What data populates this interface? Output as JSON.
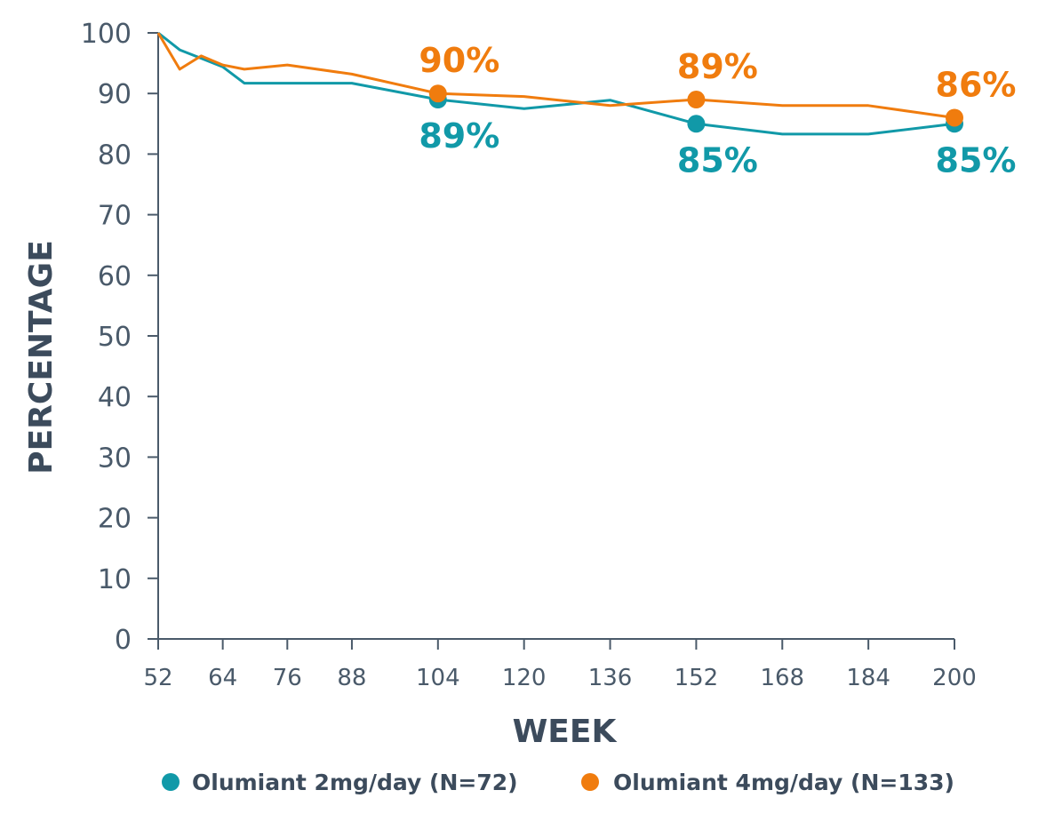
{
  "chart_data": {
    "type": "line",
    "title": "",
    "xlabel": "WEEK",
    "ylabel": "PERCENTAGE",
    "xlim": [
      52,
      200
    ],
    "ylim": [
      0,
      100
    ],
    "x_ticks": [
      52,
      64,
      76,
      88,
      104,
      120,
      136,
      152,
      168,
      184,
      200
    ],
    "y_ticks": [
      0,
      10,
      20,
      30,
      40,
      50,
      60,
      70,
      80,
      90,
      100
    ],
    "grid": false,
    "legend_position": "bottom",
    "series": [
      {
        "name": "Olumiant 2mg/day (N=72)",
        "color": "#1199a8",
        "x": [
          52,
          56,
          60,
          64,
          68,
          76,
          88,
          104,
          120,
          136,
          152,
          168,
          184,
          200
        ],
        "y": [
          100,
          97.2,
          95.8,
          94.4,
          91.7,
          91.7,
          91.7,
          89,
          87.5,
          88.9,
          85,
          83.3,
          83.3,
          85
        ],
        "markers": [
          {
            "x": 104,
            "y": 89,
            "label": "89%"
          },
          {
            "x": 152,
            "y": 85,
            "label": "85%"
          },
          {
            "x": 200,
            "y": 85,
            "label": "85%"
          }
        ]
      },
      {
        "name": "Olumiant 4mg/day (N=133)",
        "color": "#f07c0e",
        "x": [
          52,
          56,
          60,
          64,
          68,
          76,
          88,
          104,
          120,
          136,
          152,
          168,
          184,
          200
        ],
        "y": [
          100,
          94,
          96.2,
          94.7,
          94,
          94.7,
          93.2,
          90,
          89.5,
          88,
          89,
          88,
          88,
          86
        ],
        "markers": [
          {
            "x": 104,
            "y": 90,
            "label": "90%"
          },
          {
            "x": 152,
            "y": 89,
            "label": "89%"
          },
          {
            "x": 200,
            "y": 86,
            "label": "86%"
          }
        ]
      }
    ]
  }
}
